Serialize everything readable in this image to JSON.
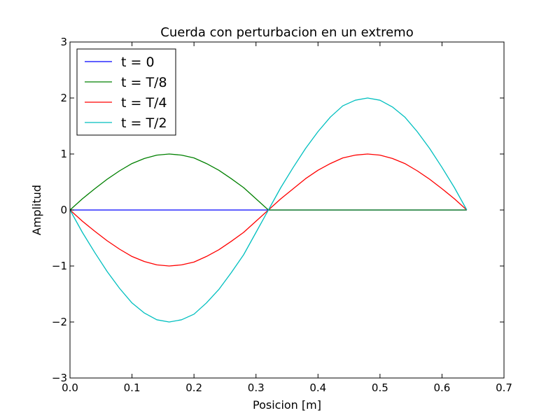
{
  "chart_data": {
    "type": "line",
    "title": "Cuerda con perturbacion en un extremo",
    "xlabel": "Posicion [m]",
    "ylabel": "Amplitud",
    "xlim": [
      0.0,
      0.7
    ],
    "ylim": [
      -3,
      3
    ],
    "x_ticks": [
      "0.0",
      "0.1",
      "0.2",
      "0.3",
      "0.4",
      "0.5",
      "0.6",
      "0.7"
    ],
    "y_ticks": [
      "−3",
      "−2",
      "−1",
      "0",
      "1",
      "2",
      "3"
    ],
    "grid": false,
    "legend_position": "top-left",
    "x": [
      0.0,
      0.02,
      0.04,
      0.06,
      0.08,
      0.1,
      0.12,
      0.14,
      0.16,
      0.18,
      0.2,
      0.22,
      0.24,
      0.26,
      0.28,
      0.3,
      0.32,
      0.34,
      0.36,
      0.38,
      0.4,
      0.42,
      0.44,
      0.46,
      0.48,
      0.5,
      0.52,
      0.54,
      0.56,
      0.58,
      0.6,
      0.62,
      0.64
    ],
    "series": [
      {
        "name": "t = 0",
        "color": "#0000ff",
        "values": [
          0,
          0,
          0,
          0,
          0,
          0,
          0,
          0,
          0,
          0,
          0,
          0,
          0,
          0,
          0,
          0,
          0,
          0,
          0,
          0,
          0,
          0,
          0,
          0,
          0,
          0,
          0,
          0,
          0,
          0,
          0,
          0,
          0
        ]
      },
      {
        "name": "t = T/8",
        "color": "#008000",
        "values": [
          0,
          0.2,
          0.38,
          0.55,
          0.7,
          0.83,
          0.92,
          0.98,
          1.0,
          0.98,
          0.93,
          0.83,
          0.71,
          0.56,
          0.4,
          0.2,
          0,
          0,
          0,
          0,
          0,
          0,
          0,
          0,
          0,
          0,
          0,
          0,
          0,
          0,
          0,
          0,
          0
        ]
      },
      {
        "name": "t = T/4",
        "color": "#ff0000",
        "values": [
          0,
          -0.2,
          -0.38,
          -0.55,
          -0.7,
          -0.83,
          -0.92,
          -0.98,
          -1.0,
          -0.98,
          -0.93,
          -0.83,
          -0.71,
          -0.56,
          -0.4,
          -0.2,
          0,
          0.2,
          0.38,
          0.56,
          0.71,
          0.83,
          0.93,
          0.98,
          1.0,
          0.98,
          0.92,
          0.83,
          0.7,
          0.55,
          0.38,
          0.2,
          0
        ]
      },
      {
        "name": "t = T/2",
        "color": "#00bfbf",
        "values": [
          0,
          -0.4,
          -0.76,
          -1.1,
          -1.4,
          -1.66,
          -1.84,
          -1.96,
          -2.0,
          -1.96,
          -1.86,
          -1.66,
          -1.42,
          -1.12,
          -0.8,
          -0.4,
          0,
          0.4,
          0.76,
          1.1,
          1.4,
          1.66,
          1.86,
          1.96,
          2.0,
          1.96,
          1.84,
          1.66,
          1.4,
          1.1,
          0.76,
          0.4,
          0
        ]
      }
    ]
  }
}
